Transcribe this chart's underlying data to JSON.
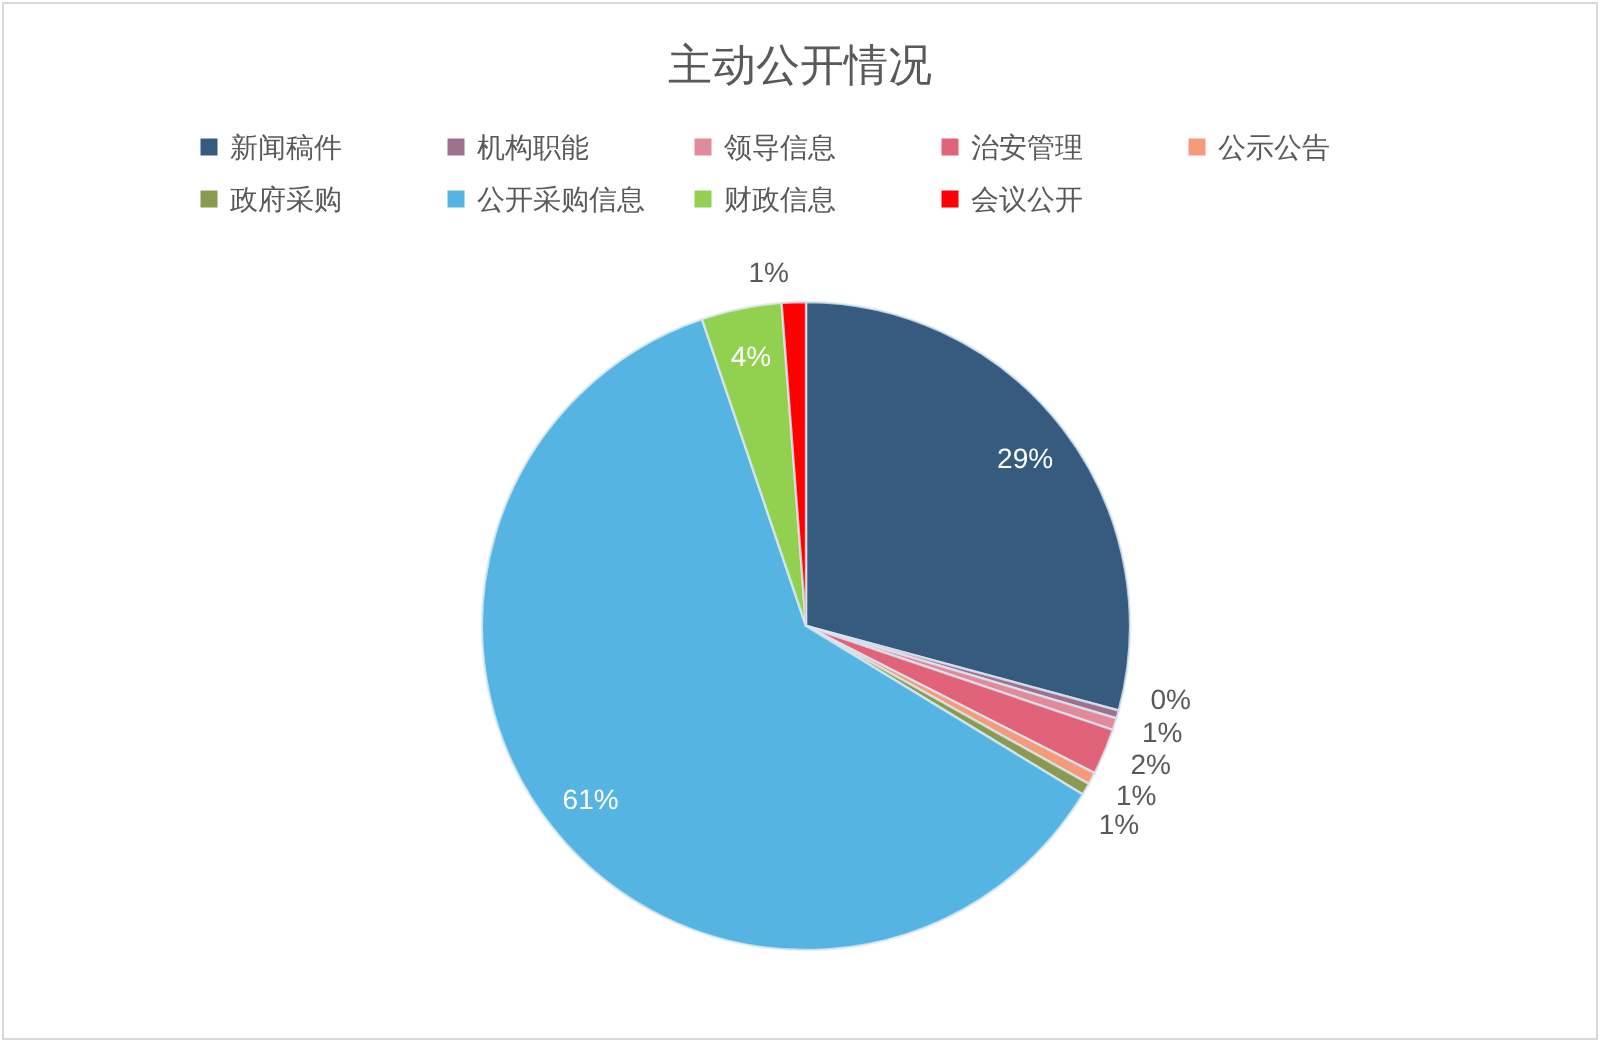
{
  "chart_data": {
    "type": "pie",
    "title": "主动公开情况",
    "categories": [
      "新闻稿件",
      "机构职能",
      "领导信息",
      "治安管理",
      "公示公告",
      "政府采购",
      "公开采购信息",
      "财政信息",
      "会议公开"
    ],
    "values": [
      29.2,
      0.4,
      0.6,
      2.3,
      0.6,
      0.6,
      61.1,
      4.0,
      1.2
    ],
    "value_labels": [
      "29%",
      "0%",
      "1%",
      "2%",
      "1%",
      "1%",
      "61%",
      "4%",
      "1%"
    ],
    "colors": [
      "#375a7f",
      "#a0708f",
      "#e08a9c",
      "#e0637a",
      "#f59a7a",
      "#8a9a50",
      "#56b4e3",
      "#92d050",
      "#ff0000"
    ],
    "legend": "top"
  }
}
